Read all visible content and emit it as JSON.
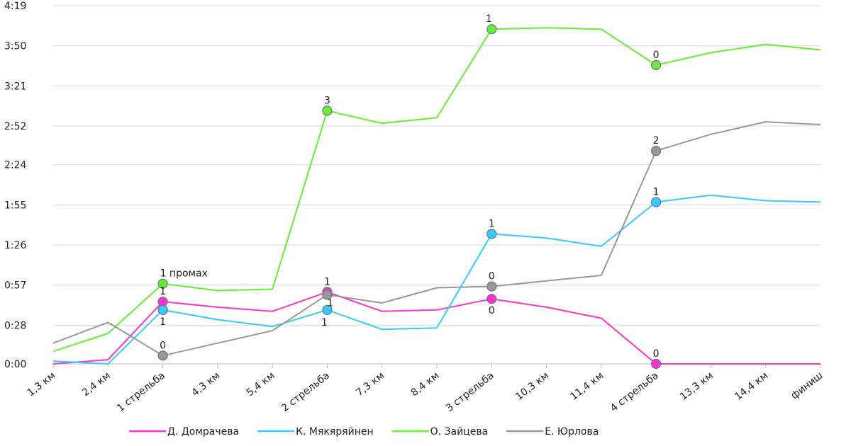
{
  "chart_data": {
    "type": "line",
    "title": "",
    "xlabel": "",
    "ylabel": "",
    "categories": [
      "1,3 км",
      "2,4 км",
      "1 стрельба",
      "4,3 км",
      "5,4 км",
      "2 стрельба",
      "7,3 км",
      "8,4 км",
      "3 стрельба",
      "10,3 км",
      "11,4 км",
      "4 стрельба",
      "13,3 км",
      "14,4 км",
      "финиш"
    ],
    "y_ticks": [
      "0:00",
      "0:28",
      "0:57",
      "1:26",
      "1:55",
      "2:24",
      "2:52",
      "3:21",
      "3:50",
      "4:19"
    ],
    "y_tick_seconds": [
      0,
      28,
      57,
      86,
      115,
      144,
      172,
      201,
      230,
      259
    ],
    "ylim_seconds": [
      0,
      259
    ],
    "grid": true,
    "legend_position": "bottom",
    "series": [
      {
        "name": "Д. Домрачева",
        "color": "#ff33cc",
        "values": [
          0,
          3,
          45,
          41,
          38,
          52,
          38,
          39,
          47,
          41,
          33,
          0,
          0,
          0,
          0
        ],
        "marker_points": [
          2,
          5,
          8,
          11
        ]
      },
      {
        "name": "К. Мякяряйнен",
        "color": "#33ccff",
        "values": [
          2,
          0,
          39,
          32,
          27,
          39,
          25,
          26,
          94,
          91,
          85,
          117,
          122,
          118,
          117
        ],
        "marker_points": [
          2,
          5,
          8,
          11
        ]
      },
      {
        "name": "О. Зайцева",
        "color": "#66ee33",
        "values": [
          9,
          22,
          58,
          53,
          54,
          183,
          174,
          178,
          242,
          243,
          242,
          216,
          225,
          231,
          227
        ],
        "marker_points": [
          2,
          5,
          8,
          11
        ]
      },
      {
        "name": "Е. Юрлова",
        "color": "#999999",
        "values": [
          15,
          30,
          6,
          15,
          24,
          50,
          44,
          55,
          56,
          60,
          64,
          154,
          166,
          175,
          173
        ],
        "marker_points": [
          2,
          5,
          8,
          11
        ]
      }
    ],
    "annotations": [
      {
        "series": 2,
        "point": 2,
        "text": "1 промах",
        "pos": "above-right"
      },
      {
        "series": 0,
        "point": 2,
        "text": "1",
        "pos": "above"
      },
      {
        "series": 1,
        "point": 2,
        "text": "1",
        "pos": "below"
      },
      {
        "series": 3,
        "point": 2,
        "text": "0",
        "pos": "above"
      },
      {
        "series": 2,
        "point": 5,
        "text": "3",
        "pos": "above"
      },
      {
        "series": 0,
        "point": 5,
        "text": "1",
        "pos": "above"
      },
      {
        "series": 3,
        "point": 5,
        "text": "1",
        "pos": "right"
      },
      {
        "series": 1,
        "point": 5,
        "text": "1",
        "pos": "below-left"
      },
      {
        "series": 2,
        "point": 8,
        "text": "1",
        "pos": "above-left"
      },
      {
        "series": 1,
        "point": 8,
        "text": "1",
        "pos": "above"
      },
      {
        "series": 3,
        "point": 8,
        "text": "0",
        "pos": "above"
      },
      {
        "series": 0,
        "point": 8,
        "text": "0",
        "pos": "below"
      },
      {
        "series": 2,
        "point": 11,
        "text": "0",
        "pos": "above"
      },
      {
        "series": 3,
        "point": 11,
        "text": "2",
        "pos": "above"
      },
      {
        "series": 1,
        "point": 11,
        "text": "1",
        "pos": "above"
      },
      {
        "series": 0,
        "point": 11,
        "text": "0",
        "pos": "above"
      }
    ]
  }
}
